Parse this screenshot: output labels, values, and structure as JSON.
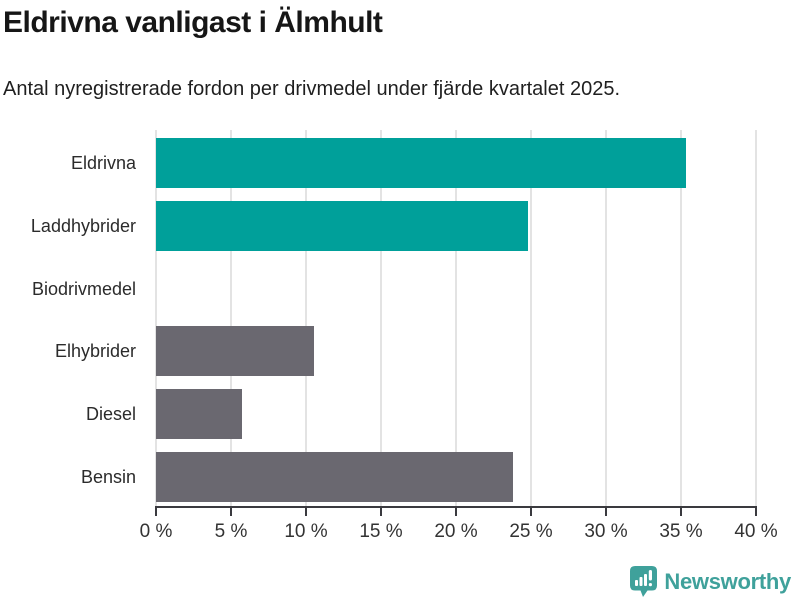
{
  "header": {
    "title": "Eldrivna vanligast i Älmhult",
    "subtitle": "Antal nyregistrerade fordon per drivmedel under fjärde kvartalet 2025."
  },
  "chart_data": {
    "type": "bar",
    "orientation": "horizontal",
    "title": "Eldrivna vanligast i Älmhult",
    "subtitle": "Antal nyregistrerade fordon per drivmedel under fjärde kvartalet 2025.",
    "categories": [
      "Eldrivna",
      "Laddhybrider",
      "Biodrivmedel",
      "Elhybrider",
      "Diesel",
      "Bensin"
    ],
    "values": [
      35.3,
      24.8,
      0,
      10.5,
      5.7,
      23.8
    ],
    "unit": "%",
    "bar_colors": [
      "#00a09a",
      "#00a09a",
      "#6a6870",
      "#6a6870",
      "#6a6870",
      "#6a6870"
    ],
    "xlim": [
      0,
      40
    ],
    "x_ticks": [
      0,
      5,
      10,
      15,
      20,
      25,
      30,
      35,
      40
    ],
    "x_tick_labels": [
      "0 %",
      "5 %",
      "10 %",
      "15 %",
      "20 %",
      "25 %",
      "30 %",
      "35 %",
      "40 %"
    ],
    "grid": true,
    "gridline_color": "#e3e3e3",
    "axis_color": "#3a3a3f",
    "legend": "none"
  },
  "footer": {
    "brand": "Newsworthy",
    "brand_color": "#3fa19b",
    "logo_icon": "bar-chart-speech-bubble"
  },
  "colors": {
    "highlight": "#00a09a",
    "neutral": "#6a6870",
    "background": "#ffffff",
    "title_text": "#161616",
    "tick_text": "#333333"
  }
}
